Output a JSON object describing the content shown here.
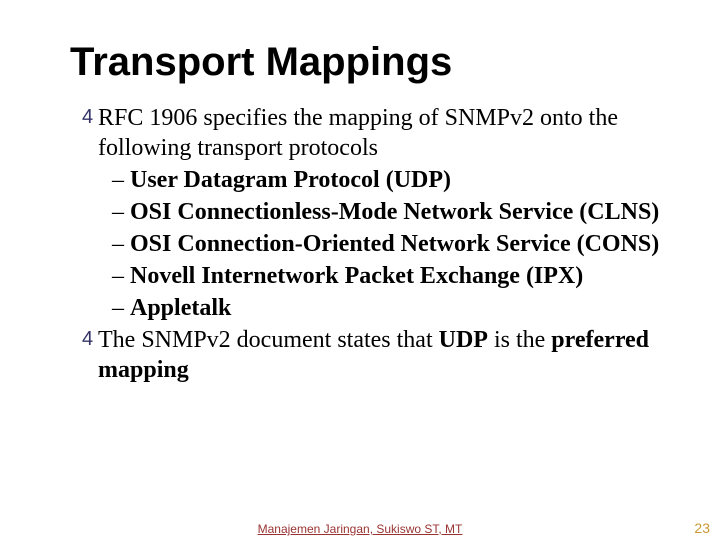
{
  "title": "Transport Mappings",
  "bullets": [
    {
      "text": "RFC 1906 specifies the mapping of SNMPv2 onto the following transport protocols",
      "subs": [
        "User Datagram Protocol (UDP)",
        "OSI Connectionless-Mode Network Service (CLNS)",
        "OSI Connection-Oriented Network Service (CONS)",
        "Novell Internetwork Packet Exchange (IPX)",
        "Appletalk"
      ]
    },
    {
      "text_parts": [
        "The SNMPv2 document states that ",
        "UDP",
        " is the ",
        "preferred mapping"
      ],
      "bold_indices": [
        1,
        3
      ],
      "subs": []
    }
  ],
  "footer": "Manajemen Jaringan, Sukiswo ST, MT",
  "page_number": "23",
  "colors": {
    "bullet_marker": "#333366",
    "footer": "#993333",
    "page_number": "#cc9933"
  },
  "bullet_glyph": "4",
  "sub_glyph": "–"
}
